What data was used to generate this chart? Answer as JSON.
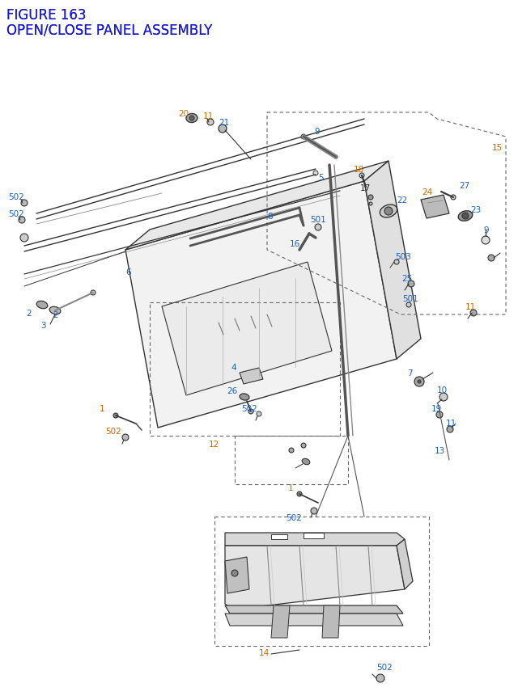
{
  "title_line1": "FIGURE 163",
  "title_line2": "OPEN/CLOSE PANEL ASSEMBLY",
  "background_color": "#ffffff",
  "title_color": "#1a1acd",
  "title_fontsize": 12,
  "label_color_blue": "#1a5fbf",
  "label_color_orange": "#cc6600",
  "label_color_black": "#222222",
  "label_fontsize": 7.5,
  "dashed_box_color": "#666666",
  "line_color": "#333333"
}
